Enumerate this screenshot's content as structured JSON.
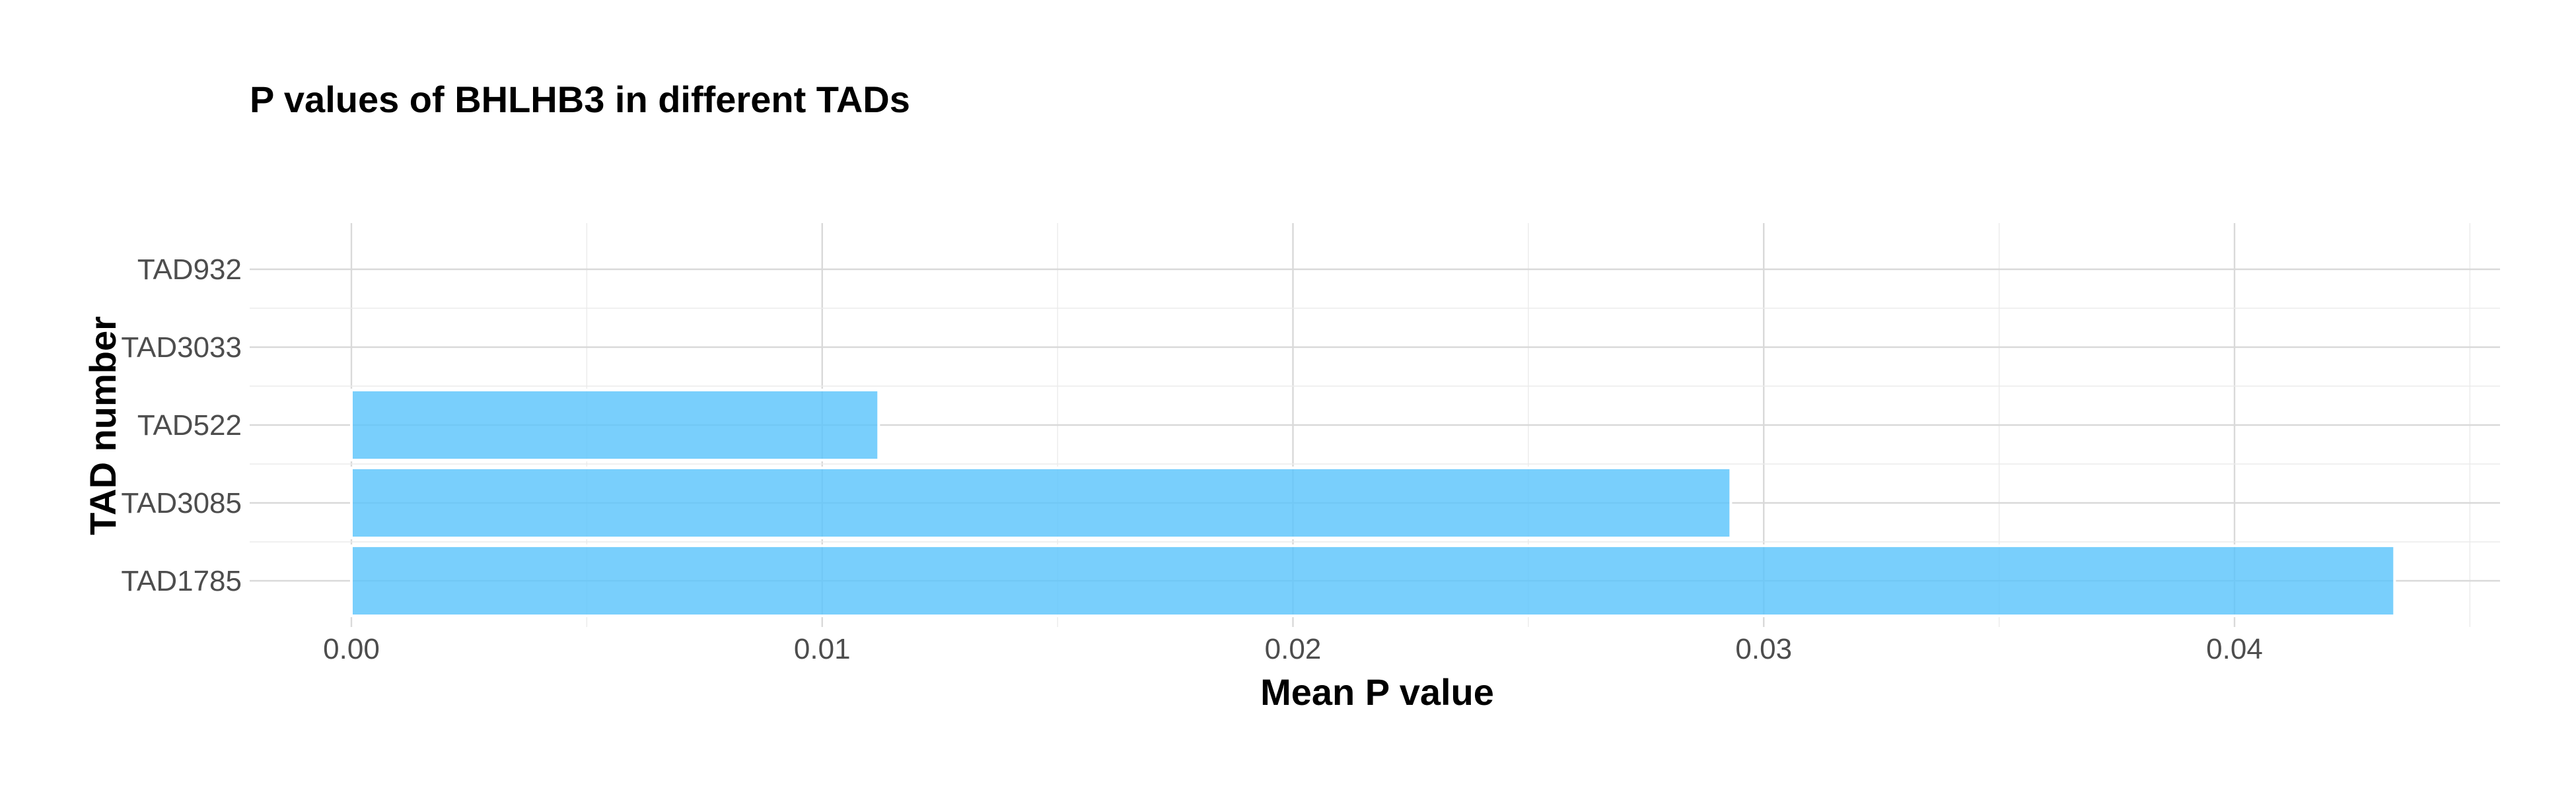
{
  "chart_data": {
    "type": "bar",
    "orientation": "horizontal",
    "title": "P values of BHLHB3 in different TADs",
    "xlabel": "Mean P value",
    "ylabel": "TAD number",
    "categories": [
      "TAD932",
      "TAD3033",
      "TAD522",
      "TAD3085",
      "TAD1785"
    ],
    "values": [
      0.0,
      0.0,
      0.0112,
      0.0293,
      0.0434
    ],
    "xlim": [
      -0.0022,
      0.0456
    ],
    "xticks": [
      0.0,
      0.01,
      0.02,
      0.03,
      0.04
    ],
    "xtick_labels": [
      "0.00",
      "0.01",
      "0.02",
      "0.03",
      "0.04"
    ],
    "grid": true,
    "legend": "none",
    "bar_color": "#5bc5fb"
  }
}
